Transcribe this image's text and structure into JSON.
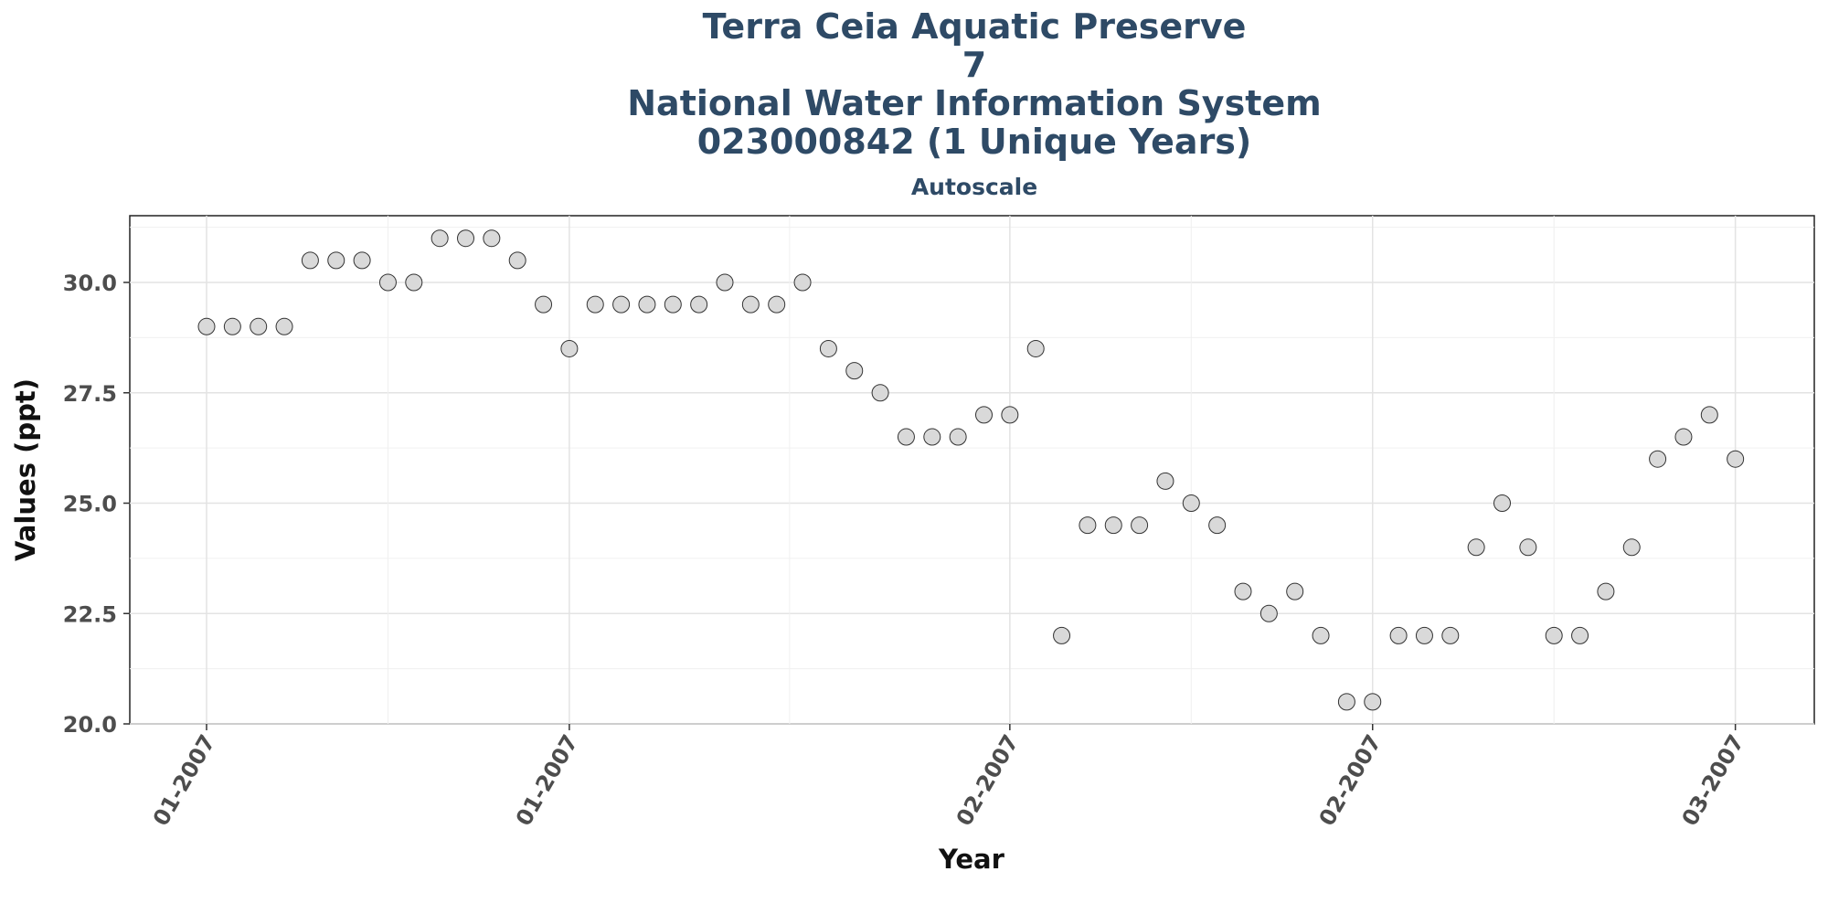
{
  "chart_data": {
    "type": "scatter",
    "title_lines": [
      "Terra Ceia Aquatic Preserve",
      "7",
      "National Water Information System",
      "023000842 (1 Unique Years)"
    ],
    "subtitle": "Autoscale",
    "xlabel": "Year",
    "ylabel": "Values (ppt)",
    "ylim": [
      20.0,
      31.5
    ],
    "yticks": [
      "20.0",
      "22.5",
      "25.0",
      "27.5",
      "30.0"
    ],
    "xticks": [
      "01-2007",
      "01-2007",
      "02-2007",
      "02-2007",
      "03-2007"
    ],
    "grid": true,
    "point_fill": "#d9d9d9",
    "point_stroke": "#333333",
    "values": [
      29,
      29,
      29,
      29,
      30.5,
      30.5,
      30.5,
      30,
      30,
      31,
      31,
      31,
      30.5,
      29.5,
      28.5,
      29.5,
      29.5,
      29.5,
      29.5,
      29.5,
      30,
      29.5,
      29.5,
      30,
      28.5,
      28,
      27.5,
      26.5,
      26.5,
      26.5,
      27,
      27,
      28.5,
      22,
      24.5,
      24.5,
      24.5,
      25.5,
      25,
      24.5,
      23,
      22.5,
      23,
      22,
      20.5,
      20.5,
      22,
      22,
      22,
      24,
      25,
      24,
      22,
      22,
      23,
      24,
      26,
      26.5,
      27,
      26
    ]
  }
}
